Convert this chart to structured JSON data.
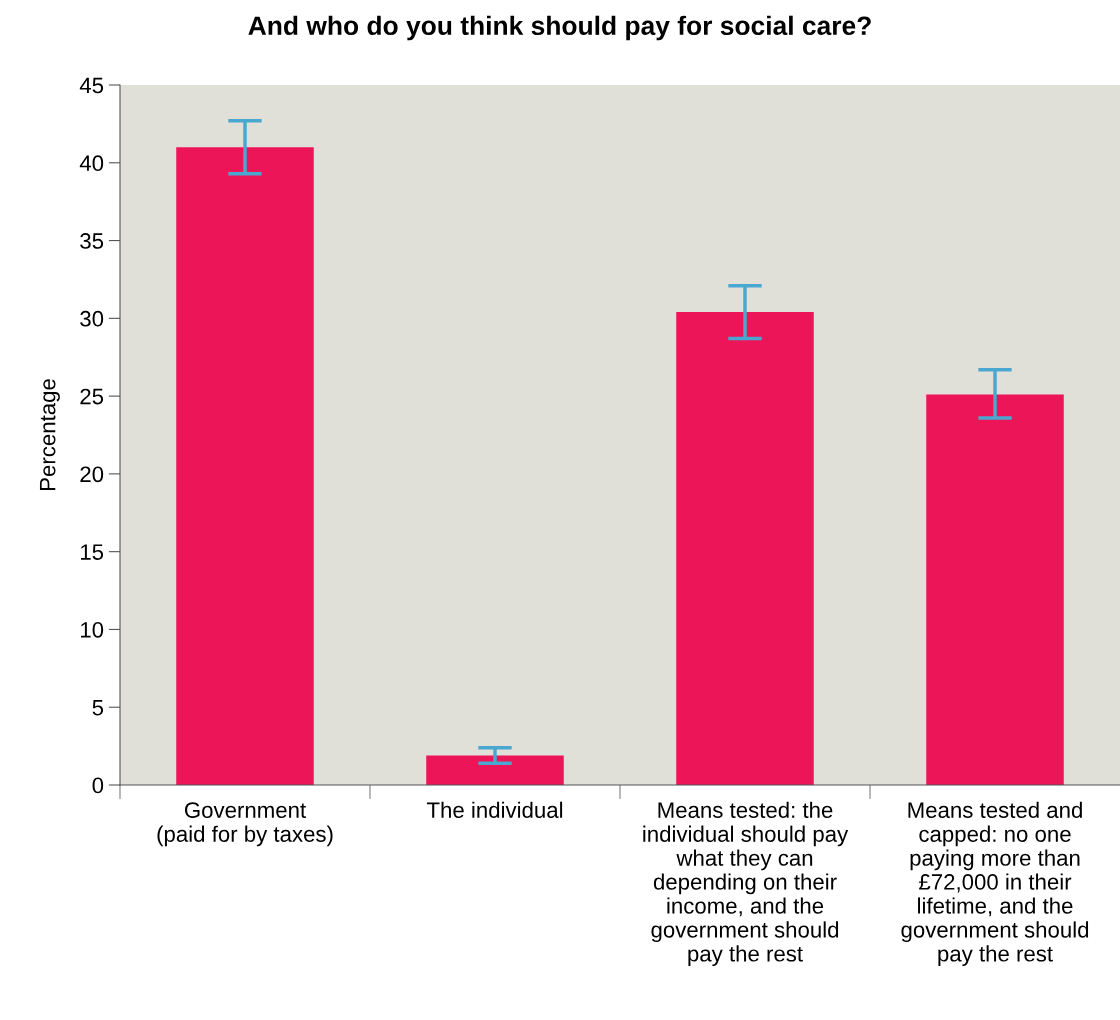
{
  "chart_data": {
    "type": "bar",
    "title": "And who do you think should pay for social care?",
    "ylabel": "Percentage",
    "categories": [
      "Government\n(paid for by taxes)",
      "The individual",
      "Means tested: the\nindividual should pay\nwhat they can\ndepending on their\nincome, and the\ngovernment should\npay the rest",
      "Means tested and\ncapped: no one\npaying more than\n£72,000 in their\nlifetime, and the\ngovernment should\npay the rest"
    ],
    "values": [
      41.0,
      1.9,
      30.4,
      25.1
    ],
    "errors": [
      [
        39.3,
        42.7
      ],
      [
        1.4,
        2.4
      ],
      [
        28.7,
        32.1
      ],
      [
        23.6,
        26.7
      ]
    ],
    "color": "#ec1558",
    "ylim": [
      0,
      45
    ],
    "yticks": [
      0,
      5,
      10,
      15,
      20,
      25,
      30,
      35,
      40,
      45
    ],
    "grid": false,
    "legend": false
  }
}
